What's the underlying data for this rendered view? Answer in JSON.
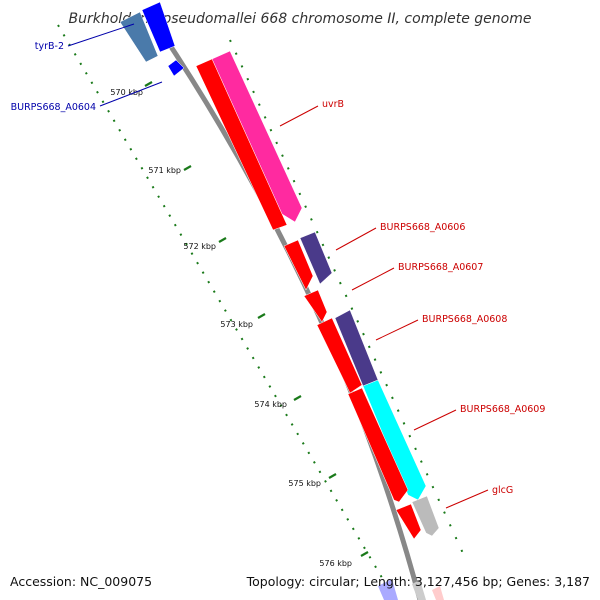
{
  "title": "Burkholderia pseudomallei 668 chromosome II, complete genome",
  "footer": {
    "accession": "Accession: NC_009075",
    "summary": "Topology: circular; Length: 3,127,456 bp; Genes: 3,187"
  },
  "colors": {
    "backbone": "#888888",
    "ticks": "#1a7a1a",
    "label_left": "#0000aa",
    "label_right": "#cc0000",
    "gene_red": "#ff0000",
    "gene_pink": "#ff2aa0",
    "gene_purple": "#4a3a8a",
    "gene_cyan": "#00ffff",
    "gene_gray": "#bbbbbb",
    "gene_blue": "#0000ff",
    "gene_steel": "#4a7aaa"
  },
  "ticks": [
    {
      "label": "570 kbp"
    },
    {
      "label": "571 kbp"
    },
    {
      "label": "572 kbp"
    },
    {
      "label": "573 kbp"
    },
    {
      "label": "574 kbp"
    },
    {
      "label": "575 kbp"
    },
    {
      "label": "576 kbp"
    }
  ],
  "gene_labels": [
    {
      "text": "tyrB-2",
      "side": "left"
    },
    {
      "text": "BURPS668_A0604",
      "side": "left"
    },
    {
      "text": "uvrB",
      "side": "right"
    },
    {
      "text": "BURPS668_A0606",
      "side": "right"
    },
    {
      "text": "BURPS668_A0607",
      "side": "right"
    },
    {
      "text": "BURPS668_A0608",
      "side": "right"
    },
    {
      "text": "BURPS668_A0609",
      "side": "right"
    },
    {
      "text": "glcG",
      "side": "right"
    }
  ]
}
